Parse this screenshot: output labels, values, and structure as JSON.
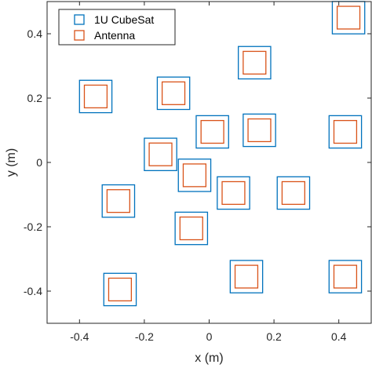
{
  "chart_data": {
    "type": "scatter",
    "xlabel": "x (m)",
    "ylabel": "y (m)",
    "xlim": [
      -0.5,
      0.5
    ],
    "ylim": [
      -0.5,
      0.5
    ],
    "xticks": [
      -0.4,
      -0.2,
      0,
      0.2,
      0.4
    ],
    "yticks": [
      -0.4,
      -0.2,
      0,
      0.2,
      0.4
    ],
    "xtick_labels": [
      "-0.4",
      "-0.2",
      "0",
      "0.2",
      "0.4"
    ],
    "ytick_labels": [
      "-0.4",
      "-0.2",
      "0",
      "0.2",
      "0.4"
    ],
    "grid": false,
    "legend_position": "top-left",
    "cubesat_side_m": 0.1,
    "antenna_side_m": 0.07,
    "series": [
      {
        "name": "1U CubeSat",
        "color": "#0072BD",
        "marker": "square"
      },
      {
        "name": "Antenna",
        "color": "#D95319",
        "marker": "square"
      }
    ],
    "points": [
      {
        "x": 0.43,
        "y": 0.45
      },
      {
        "x": 0.14,
        "y": 0.31
      },
      {
        "x": -0.35,
        "y": 0.205
      },
      {
        "x": -0.11,
        "y": 0.215
      },
      {
        "x": 0.01,
        "y": 0.095
      },
      {
        "x": 0.155,
        "y": 0.1
      },
      {
        "x": 0.42,
        "y": 0.095
      },
      {
        "x": -0.15,
        "y": 0.025
      },
      {
        "x": -0.045,
        "y": -0.04
      },
      {
        "x": 0.075,
        "y": -0.095
      },
      {
        "x": 0.26,
        "y": -0.095
      },
      {
        "x": -0.28,
        "y": -0.12
      },
      {
        "x": -0.055,
        "y": -0.205
      },
      {
        "x": 0.115,
        "y": -0.355
      },
      {
        "x": 0.42,
        "y": -0.355
      },
      {
        "x": -0.275,
        "y": -0.395
      }
    ]
  }
}
